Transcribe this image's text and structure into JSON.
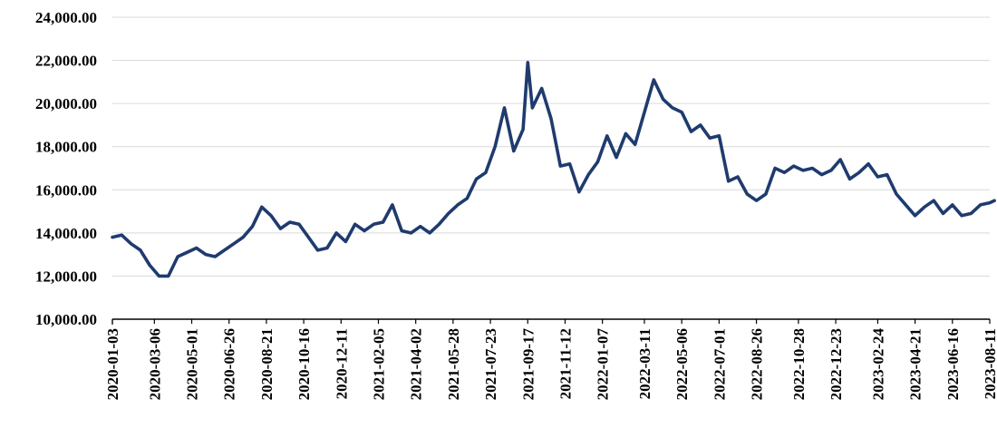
{
  "chart_data": {
    "type": "line",
    "title": "",
    "xlabel": "",
    "ylabel": "",
    "ylim": [
      10000,
      24000
    ],
    "grid": true,
    "y_ticks": [
      "10,000.00",
      "12,000.00",
      "14,000.00",
      "16,000.00",
      "18,000.00",
      "20,000.00",
      "22,000.00",
      "24,000.00"
    ],
    "y_tick_values": [
      10000,
      12000,
      14000,
      16000,
      18000,
      20000,
      22000,
      24000
    ],
    "x_ticks": [
      "2020-01-03",
      "2020-03-06",
      "2020-05-01",
      "2020-06-26",
      "2020-08-21",
      "2020-10-16",
      "2020-12-11",
      "2021-02-05",
      "2021-04-02",
      "2021-05-28",
      "2021-07-23",
      "2021-09-17",
      "2021-11-12",
      "2022-01-07",
      "2022-03-11",
      "2022-05-06",
      "2022-07-01",
      "2022-08-26",
      "2022-10-28",
      "2022-12-23",
      "2023-02-24",
      "2023-04-21",
      "2023-06-16",
      "2023-08-11"
    ],
    "series": [
      {
        "color": "#1f3b6e",
        "x": [
          "2020-01-03",
          "2020-01-17",
          "2020-01-31",
          "2020-02-14",
          "2020-02-28",
          "2020-03-13",
          "2020-03-27",
          "2020-04-10",
          "2020-04-24",
          "2020-05-08",
          "2020-05-22",
          "2020-06-05",
          "2020-06-19",
          "2020-07-03",
          "2020-07-17",
          "2020-07-31",
          "2020-08-14",
          "2020-08-28",
          "2020-09-11",
          "2020-09-25",
          "2020-10-09",
          "2020-10-23",
          "2020-11-06",
          "2020-11-20",
          "2020-12-04",
          "2020-12-18",
          "2021-01-01",
          "2021-01-15",
          "2021-01-29",
          "2021-02-12",
          "2021-02-26",
          "2021-03-12",
          "2021-03-26",
          "2021-04-09",
          "2021-04-23",
          "2021-05-07",
          "2021-05-21",
          "2021-06-04",
          "2021-06-18",
          "2021-07-02",
          "2021-07-16",
          "2021-07-30",
          "2021-08-13",
          "2021-08-27",
          "2021-09-10",
          "2021-09-17",
          "2021-09-24",
          "2021-10-08",
          "2021-10-22",
          "2021-11-05",
          "2021-11-19",
          "2021-12-03",
          "2021-12-17",
          "2021-12-31",
          "2022-01-14",
          "2022-01-28",
          "2022-02-11",
          "2022-02-25",
          "2022-03-11",
          "2022-03-25",
          "2022-04-08",
          "2022-04-22",
          "2022-05-06",
          "2022-05-20",
          "2022-06-03",
          "2022-06-17",
          "2022-07-01",
          "2022-07-15",
          "2022-07-29",
          "2022-08-12",
          "2022-08-26",
          "2022-09-09",
          "2022-09-23",
          "2022-10-07",
          "2022-10-21",
          "2022-11-04",
          "2022-11-18",
          "2022-12-02",
          "2022-12-16",
          "2022-12-30",
          "2023-01-13",
          "2023-01-27",
          "2023-02-10",
          "2023-02-24",
          "2023-03-10",
          "2023-03-24",
          "2023-04-07",
          "2023-04-21",
          "2023-05-05",
          "2023-05-19",
          "2023-06-02",
          "2023-06-16",
          "2023-06-30",
          "2023-07-14",
          "2023-07-28",
          "2023-08-11",
          "2023-08-18"
        ],
        "values": [
          13800,
          13900,
          13500,
          13200,
          12500,
          12000,
          12000,
          12900,
          13100,
          13300,
          13000,
          12900,
          13200,
          13500,
          13800,
          14300,
          15200,
          14800,
          14200,
          14500,
          14400,
          13800,
          13200,
          13300,
          14000,
          13600,
          14400,
          14100,
          14400,
          14500,
          15300,
          14100,
          14000,
          14300,
          14000,
          14400,
          14900,
          15300,
          15600,
          16500,
          16800,
          18000,
          19800,
          17800,
          18800,
          21900,
          19800,
          20700,
          19300,
          17100,
          17200,
          15900,
          16700,
          17300,
          18500,
          17500,
          18600,
          18100,
          19600,
          21100,
          20200,
          19800,
          19600,
          18700,
          19000,
          18400,
          18500,
          16400,
          16600,
          15800,
          15500,
          15800,
          17000,
          16800,
          17100,
          16900,
          17000,
          16700,
          16900,
          17400,
          16500,
          16800,
          17200,
          16600,
          16700,
          15800,
          15300,
          14800,
          15200,
          15500,
          14900,
          15300,
          14800,
          14900,
          15300,
          15400,
          15500
        ]
      }
    ]
  }
}
